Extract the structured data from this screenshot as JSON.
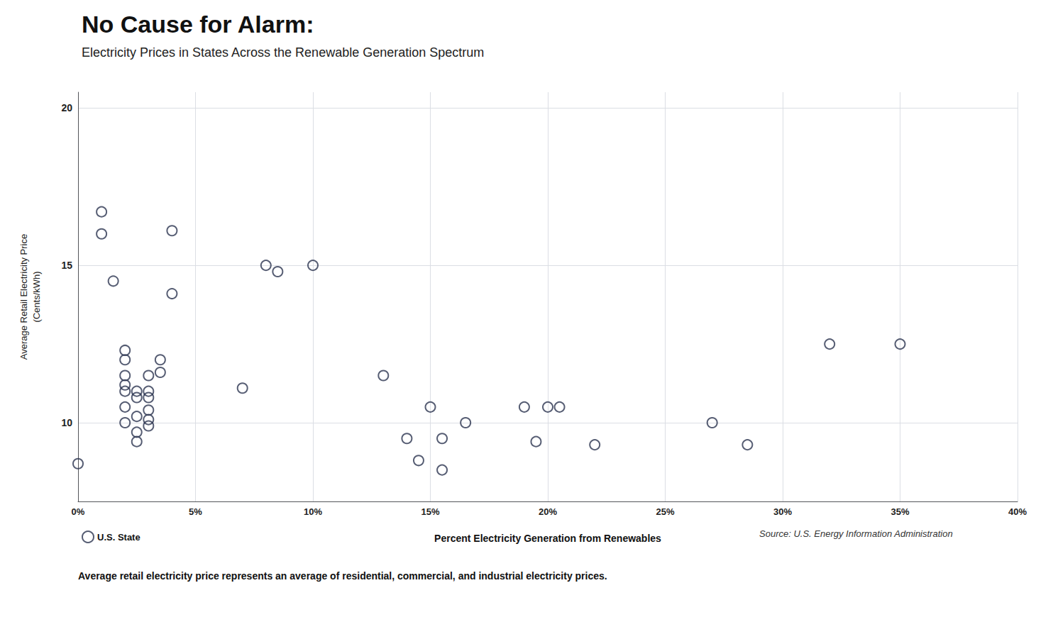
{
  "chart_data": {
    "type": "scatter",
    "title": "No Cause for Alarm:",
    "subtitle": "Electricity Prices in States Across the Renewable Generation Spectrum",
    "xlabel": "Percent Electricity Generation from Renewables",
    "ylabel": "Average Retail Electricity Price\n(Cents/kWh)",
    "annotations": [
      "Source: U.S. Energy Information Administration",
      "Average retail electricity price represents an average of residential, commercial, and industrial electricity prices."
    ],
    "x": [
      0.0,
      0.01,
      0.01,
      0.015,
      0.02,
      0.02,
      0.02,
      0.02,
      0.02,
      0.02,
      0.02,
      0.025,
      0.025,
      0.025,
      0.025,
      0.025,
      0.03,
      0.03,
      0.03,
      0.03,
      0.03,
      0.03,
      0.035,
      0.035,
      0.04,
      0.04,
      0.07,
      0.08,
      0.085,
      0.1,
      0.13,
      0.14,
      0.145,
      0.15,
      0.155,
      0.155,
      0.165,
      0.19,
      0.195,
      0.2,
      0.205,
      0.22,
      0.27,
      0.285,
      0.32,
      0.35
    ],
    "series": [
      {
        "name": "U.S. State",
        "color": "#2C3550",
        "marker": "circle",
        "values": [
          8.7,
          16.7,
          16.0,
          14.5,
          12.3,
          12.0,
          11.5,
          11.2,
          11.0,
          10.5,
          10.0,
          11.0,
          10.8,
          10.2,
          9.7,
          9.4,
          11.5,
          11.0,
          10.8,
          10.4,
          10.1,
          9.9,
          12.0,
          11.6,
          16.1,
          14.1,
          11.1,
          15.0,
          14.8,
          15.0,
          11.5,
          9.5,
          8.8,
          10.5,
          9.5,
          8.5,
          10.0,
          10.5,
          9.4,
          10.5,
          10.5,
          9.3,
          10.0,
          9.3,
          12.5,
          12.5
        ]
      }
    ],
    "xlim": [
      0,
      0.4
    ],
    "ylim": [
      7.5,
      20.5
    ],
    "xticks": [
      {
        "value": 0.0,
        "label": "0%"
      },
      {
        "value": 0.05,
        "label": "5%"
      },
      {
        "value": 0.1,
        "label": "10%"
      },
      {
        "value": 0.15,
        "label": "15%"
      },
      {
        "value": 0.2,
        "label": "20%"
      },
      {
        "value": 0.25,
        "label": "25%"
      },
      {
        "value": 0.3,
        "label": "30%"
      },
      {
        "value": 0.35,
        "label": "35%"
      },
      {
        "value": 0.4,
        "label": "40%"
      }
    ],
    "yticks": [
      10,
      15,
      20
    ],
    "grid": true,
    "legend": "bottom"
  }
}
